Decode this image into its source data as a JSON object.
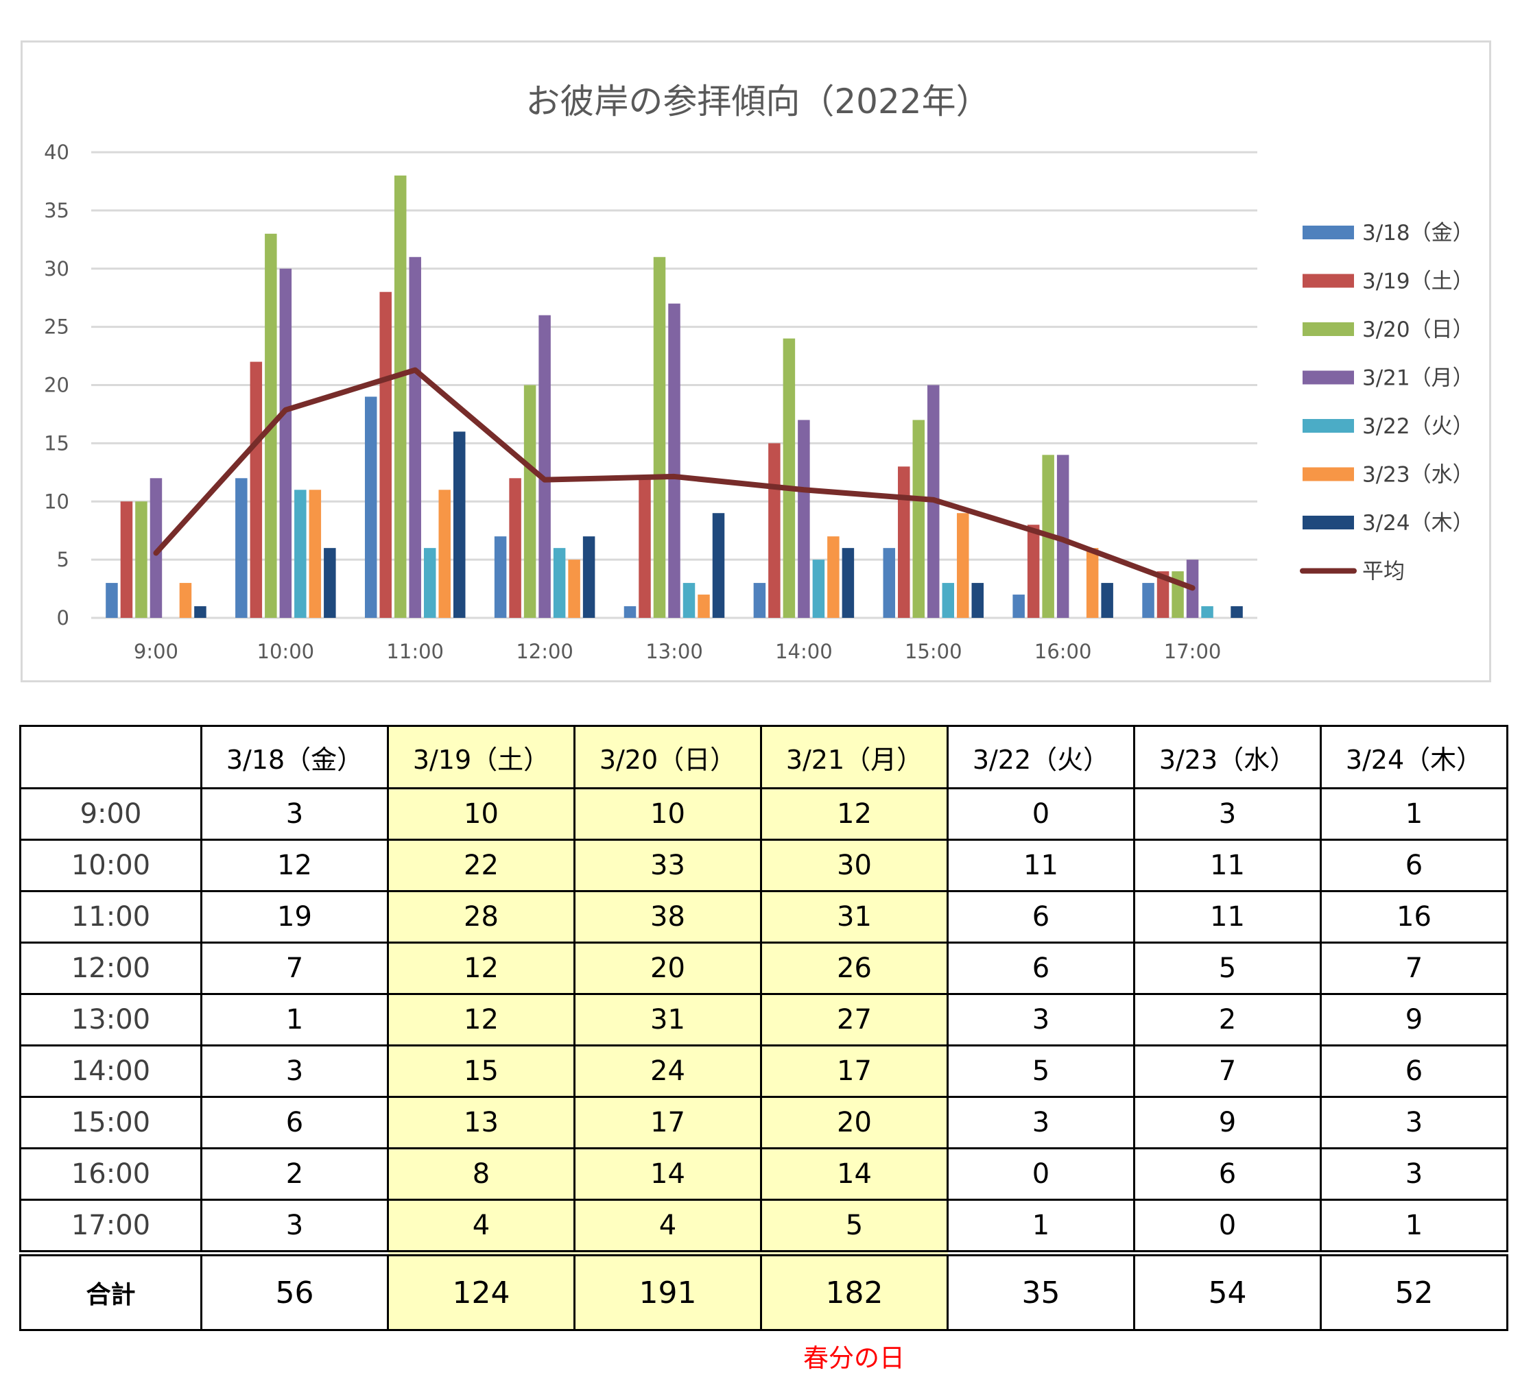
{
  "chart_data": {
    "type": "bar",
    "title": "お彼岸の参拝傾向（2022年）",
    "categories": [
      "9:00",
      "10:00",
      "11:00",
      "12:00",
      "13:00",
      "14:00",
      "15:00",
      "16:00",
      "17:00"
    ],
    "ylim": [
      0,
      40
    ],
    "yticks": [
      0,
      5,
      10,
      15,
      20,
      25,
      30,
      35,
      40
    ],
    "grid": true,
    "legend_position": "right",
    "series": [
      {
        "name": "3/18（金）",
        "color": "#4f81bd",
        "values": [
          3,
          12,
          19,
          7,
          1,
          3,
          6,
          2,
          3
        ]
      },
      {
        "name": "3/19（土）",
        "color": "#c0504d",
        "values": [
          10,
          22,
          28,
          12,
          12,
          15,
          13,
          8,
          4
        ]
      },
      {
        "name": "3/20（日）",
        "color": "#9bbb59",
        "values": [
          10,
          33,
          38,
          20,
          31,
          24,
          17,
          14,
          4
        ]
      },
      {
        "name": "3/21（月）",
        "color": "#8064a2",
        "values": [
          12,
          30,
          31,
          26,
          27,
          17,
          20,
          14,
          5
        ]
      },
      {
        "name": "3/22（火）",
        "color": "#4bacc6",
        "values": [
          0,
          11,
          6,
          6,
          3,
          5,
          3,
          0,
          1
        ]
      },
      {
        "name": "3/23（水）",
        "color": "#f79646",
        "values": [
          3,
          11,
          11,
          5,
          2,
          7,
          9,
          6,
          0
        ]
      },
      {
        "name": "3/24（木）",
        "color": "#1f497d",
        "values": [
          1,
          6,
          16,
          7,
          9,
          6,
          3,
          3,
          1
        ]
      }
    ],
    "line_series": {
      "name": "平均",
      "color": "#772c2a",
      "type": "line",
      "values": [
        5.57,
        17.86,
        21.29,
        11.86,
        12.14,
        11.0,
        10.14,
        6.71,
        2.57
      ]
    }
  },
  "table": {
    "headers": [
      "",
      "3/18（金）",
      "3/19（土）",
      "3/20（日）",
      "3/21（月）",
      "3/22（火）",
      "3/23（水）",
      "3/24（木）"
    ],
    "highlight_columns": [
      2,
      3,
      4
    ],
    "highlight_color": "#ffffc0",
    "rows": [
      [
        "9:00",
        "3",
        "10",
        "10",
        "12",
        "0",
        "3",
        "1"
      ],
      [
        "10:00",
        "12",
        "22",
        "33",
        "30",
        "11",
        "11",
        "6"
      ],
      [
        "11:00",
        "19",
        "28",
        "38",
        "31",
        "6",
        "11",
        "16"
      ],
      [
        "12:00",
        "7",
        "12",
        "20",
        "26",
        "6",
        "5",
        "7"
      ],
      [
        "13:00",
        "1",
        "12",
        "31",
        "27",
        "3",
        "2",
        "9"
      ],
      [
        "14:00",
        "3",
        "15",
        "24",
        "17",
        "5",
        "7",
        "6"
      ],
      [
        "15:00",
        "6",
        "13",
        "17",
        "20",
        "3",
        "9",
        "3"
      ],
      [
        "16:00",
        "2",
        "8",
        "14",
        "14",
        "0",
        "6",
        "3"
      ],
      [
        "17:00",
        "3",
        "4",
        "4",
        "5",
        "1",
        "0",
        "1"
      ]
    ],
    "total_row": [
      "合計",
      "56",
      "124",
      "191",
      "182",
      "35",
      "54",
      "52"
    ]
  },
  "note": {
    "text": "春分の日",
    "color": "#ff0000"
  }
}
